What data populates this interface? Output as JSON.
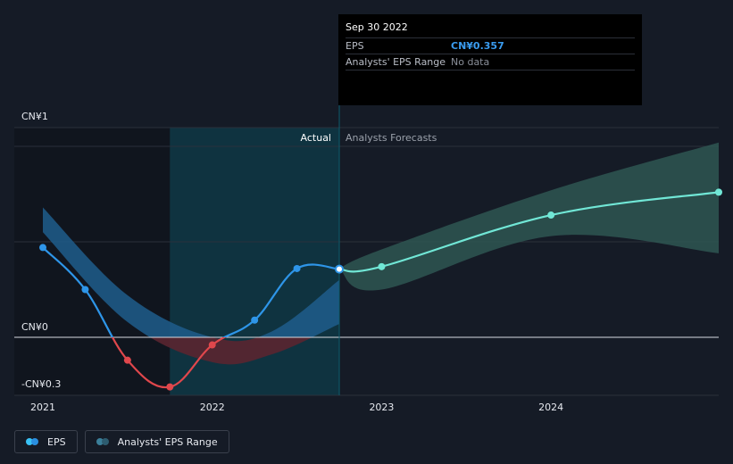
{
  "tooltip": {
    "date": "Sep 30 2022",
    "rows": [
      {
        "label": "EPS",
        "value": "CN¥0.357"
      },
      {
        "label": "Analysts' EPS Range",
        "value": "No data"
      }
    ]
  },
  "regions": {
    "actual": "Actual",
    "forecast": "Analysts Forecasts"
  },
  "legend": {
    "eps": "EPS",
    "range": "Analysts' EPS Range",
    "colors": {
      "eps_a": "#39c2f5",
      "eps_b": "#2a8fe0",
      "range_a": "#3b7f9a",
      "range_b": "#2d5c70"
    }
  },
  "chart_data": {
    "type": "line",
    "ylim": [
      -0.3,
      1
    ],
    "y_ticks": [
      {
        "value": 1,
        "label": "CN¥1"
      },
      {
        "value": 0,
        "label": "CN¥0"
      },
      {
        "value": -0.3,
        "label": "-CN¥0.3"
      }
    ],
    "x_ticks": [
      {
        "value": 2021,
        "label": "2021"
      },
      {
        "value": 2022,
        "label": "2022"
      },
      {
        "value": 2023,
        "label": "2023"
      },
      {
        "value": 2024,
        "label": "2024"
      }
    ],
    "xlim": [
      2021,
      2024.99
    ],
    "highlight_start": 2021.75,
    "split_x": 2022.75,
    "eps_actual": [
      {
        "x": 2021.0,
        "y": 0.47
      },
      {
        "x": 2021.25,
        "y": 0.25
      },
      {
        "x": 2021.5,
        "y": -0.12
      },
      {
        "x": 2021.75,
        "y": -0.26
      },
      {
        "x": 2022.0,
        "y": -0.04
      },
      {
        "x": 2022.25,
        "y": 0.09
      },
      {
        "x": 2022.5,
        "y": 0.36
      },
      {
        "x": 2022.75,
        "y": 0.357
      }
    ],
    "eps_forecast": [
      {
        "x": 2022.75,
        "y": 0.357
      },
      {
        "x": 2023.0,
        "y": 0.37
      },
      {
        "x": 2024.0,
        "y": 0.64
      },
      {
        "x": 2024.99,
        "y": 0.76
      }
    ],
    "past_range": {
      "upper": [
        {
          "x": 2021.0,
          "y": 0.68
        },
        {
          "x": 2021.5,
          "y": 0.22
        },
        {
          "x": 2022.0,
          "y": 0.0
        },
        {
          "x": 2022.35,
          "y": 0.03
        },
        {
          "x": 2022.75,
          "y": 0.3
        }
      ],
      "lower": [
        {
          "x": 2021.0,
          "y": 0.55
        },
        {
          "x": 2021.5,
          "y": 0.08
        },
        {
          "x": 2022.0,
          "y": -0.13
        },
        {
          "x": 2022.35,
          "y": -0.09
        },
        {
          "x": 2022.75,
          "y": 0.07
        }
      ]
    },
    "forecast_range": {
      "upper": [
        {
          "x": 2022.75,
          "y": 0.36
        },
        {
          "x": 2023.0,
          "y": 0.46
        },
        {
          "x": 2024.0,
          "y": 0.77
        },
        {
          "x": 2024.99,
          "y": 1.02
        }
      ],
      "lower": [
        {
          "x": 2022.75,
          "y": 0.36
        },
        {
          "x": 2023.0,
          "y": 0.25
        },
        {
          "x": 2024.0,
          "y": 0.53
        },
        {
          "x": 2024.99,
          "y": 0.44
        }
      ]
    },
    "colors": {
      "eps_positive": "#2e95e8",
      "eps_negative": "#e0474c",
      "forecast_line": "#71e7d6",
      "forecast_band": "#2f5a55",
      "past_band_positive": "#1f5d8c",
      "past_band_negative": "#5a2530",
      "highlight": "#0f3340"
    }
  }
}
